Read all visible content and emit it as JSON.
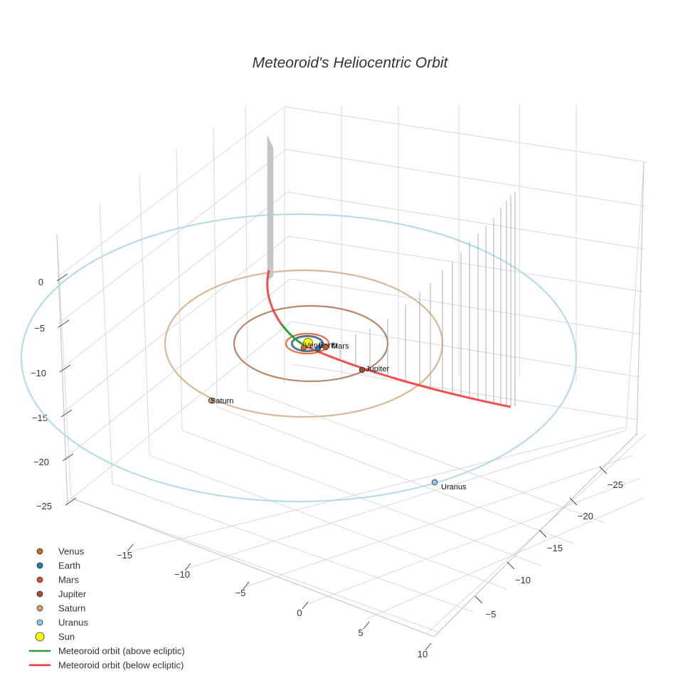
{
  "chart_data": {
    "type": "scatter3d",
    "title": "Meteoroid's Heliocentric Orbit",
    "axes": {
      "x_ticks": [
        "−15",
        "−10",
        "−5",
        "0",
        "5",
        "10"
      ],
      "y_ticks": [
        "−25",
        "−20",
        "−15",
        "−10",
        "−5"
      ],
      "z_ticks": [
        "0",
        "−5",
        "−10",
        "−15",
        "−20",
        "−25"
      ]
    },
    "sun": {
      "name": "Sun",
      "color": "#ffff00"
    },
    "planets": [
      {
        "name": "Venus",
        "orbit_radius_au": 0.72,
        "color": "#d2691e",
        "orbit_color": "#d2691e",
        "label_shown": true
      },
      {
        "name": "Earth",
        "orbit_radius_au": 1.0,
        "color": "#1f77b4",
        "orbit_color": "#1f77b4",
        "label_shown": true
      },
      {
        "name": "Mars",
        "orbit_radius_au": 1.52,
        "color": "#d2522a",
        "orbit_color": "#e0622a",
        "label_shown": true
      },
      {
        "name": "Jupiter",
        "orbit_radius_au": 5.2,
        "color": "#a0522d",
        "orbit_color": "#b07a5a",
        "label_shown": true
      },
      {
        "name": "Saturn",
        "orbit_radius_au": 9.5,
        "color": "#d2a070",
        "orbit_color": "#d4b08c",
        "label_shown": true
      },
      {
        "name": "Uranus",
        "orbit_radius_au": 19.2,
        "color": "#87ceeb",
        "orbit_color": "#add8e6",
        "label_shown": true
      }
    ],
    "meteoroid": [
      {
        "name": "Meteoroid orbit (above ecliptic)",
        "color": "#2ca02c"
      },
      {
        "name": "Meteoroid orbit (below ecliptic)",
        "color": "#ee3333"
      }
    ],
    "legend": [
      "Venus",
      "Earth",
      "Mars",
      "Jupiter",
      "Saturn",
      "Uranus",
      "Sun",
      "Meteoroid orbit (above ecliptic)",
      "Meteoroid orbit (below ecliptic)"
    ],
    "legend_position": "bottom-left"
  }
}
